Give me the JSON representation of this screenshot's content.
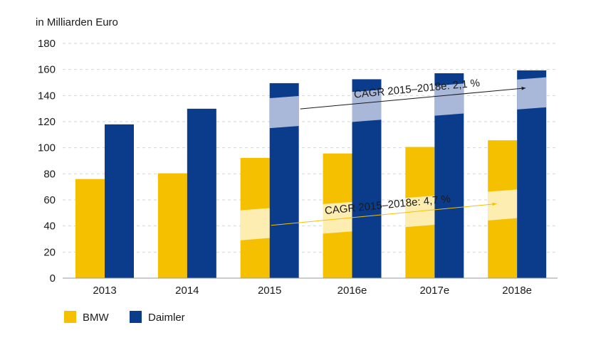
{
  "chart_data": {
    "type": "bar",
    "unit_label": "in Milliarden Euro",
    "categories": [
      "2013",
      "2014",
      "2015",
      "2016e",
      "2017e",
      "2018e"
    ],
    "series": [
      {
        "name": "BMW",
        "values": [
          76,
          80.4,
          92.2,
          95.6,
          100.6,
          105.7
        ],
        "color": "#F5C000"
      },
      {
        "name": "Daimler",
        "values": [
          117.9,
          129.9,
          149.5,
          152.5,
          157.1,
          159.3
        ],
        "color": "#0B3C8C"
      }
    ],
    "ylim": [
      0,
      180
    ],
    "yticks": [
      0,
      20,
      40,
      60,
      80,
      100,
      120,
      140,
      160,
      180
    ],
    "grid": true,
    "legend_position": "bottom-left",
    "annotations": [
      {
        "text": "CAGR 2015–2018e: 2,1 %",
        "series": "Daimler",
        "band_from": [
          115,
          138
        ],
        "band_to": [
          131,
          154
        ]
      },
      {
        "text": "CAGR 2015–2018e: 4,7 %",
        "series": "BMW",
        "band_from": [
          29,
          52
        ],
        "band_to": [
          46,
          68
        ]
      }
    ]
  }
}
